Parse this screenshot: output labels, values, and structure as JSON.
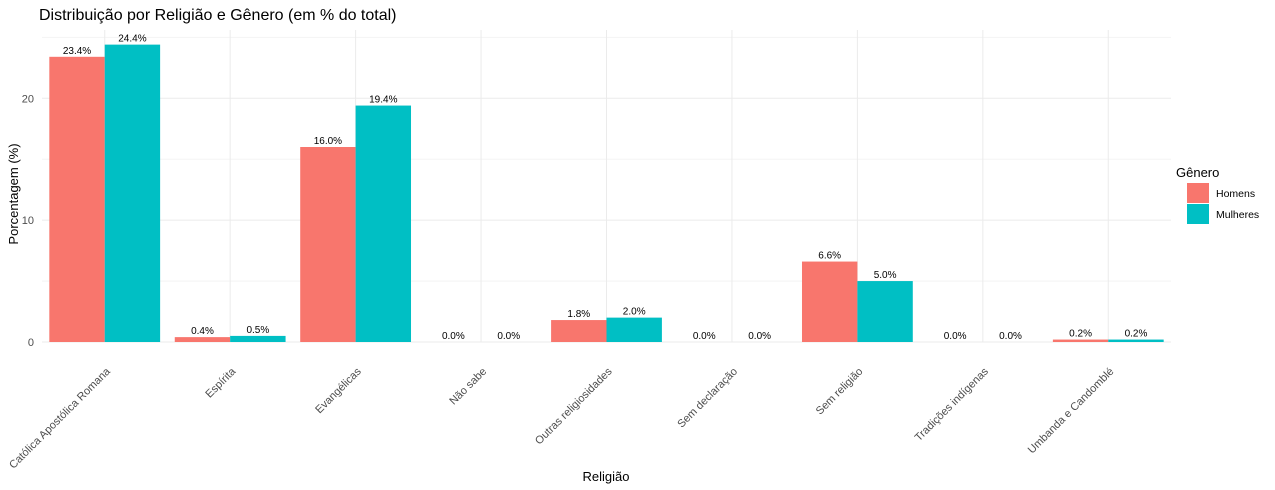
{
  "chart_data": {
    "type": "bar",
    "title": "Distribuição por Religião e Gênero (em % do total)",
    "xlabel": "Religião",
    "ylabel": "Porcentagem (%)",
    "categories": [
      "Católica Apostólica Romana",
      "Espírita",
      "Evangélicas",
      "Não sabe",
      "Outras religiosidades",
      "Sem declaração",
      "Sem religião",
      "Tradições indígenas",
      "Umbanda e Candomblé"
    ],
    "series": [
      {
        "name": "Homens",
        "color": "#F8766D",
        "values": [
          23.4,
          0.4,
          16.0,
          0.0,
          1.8,
          0.0,
          6.6,
          0.0,
          0.2
        ],
        "labels": [
          "23.4%",
          "0.4%",
          "16.0%",
          "0.0%",
          "1.8%",
          "0.0%",
          "6.6%",
          "0.0%",
          "0.2%"
        ]
      },
      {
        "name": "Mulheres",
        "color": "#00BFC4",
        "values": [
          24.4,
          0.5,
          19.4,
          0.0,
          2.0,
          0.0,
          5.0,
          0.0,
          0.2
        ],
        "labels": [
          "24.4%",
          "0.5%",
          "19.4%",
          "0.0%",
          "2.0%",
          "0.0%",
          "5.0%",
          "0.0%",
          "0.2%"
        ]
      }
    ],
    "yticks": [
      0,
      10,
      20
    ],
    "ylim": [
      0,
      25.6
    ],
    "grid": true,
    "legend": {
      "title": "Gênero",
      "position": "right"
    },
    "x_tick_rotation": "45 degrees"
  }
}
